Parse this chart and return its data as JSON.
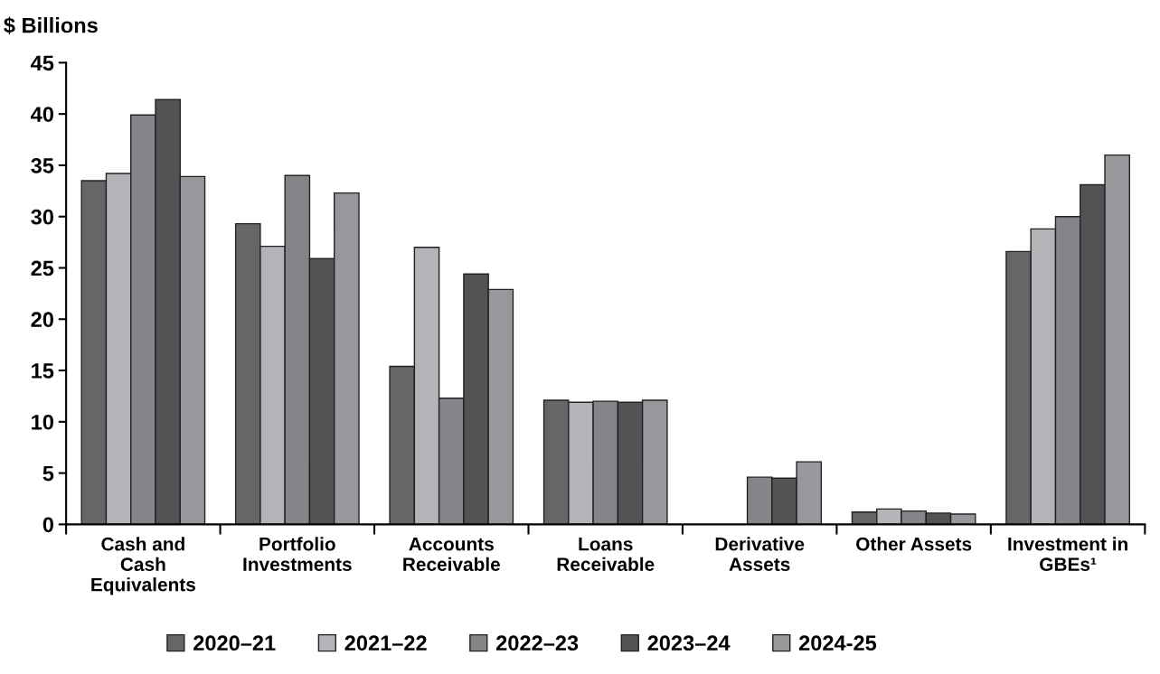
{
  "chart_data": {
    "type": "bar",
    "ylabel": "$ Billions",
    "categories": [
      "Cash and\nCash\nEquivalents",
      "Portfolio\nInvestments",
      "Accounts\nReceivable",
      "Loans\nReceivable",
      "Derivative\nAssets",
      "Other Assets",
      "Investment in\nGBEs¹"
    ],
    "series": [
      {
        "name": "2020–21",
        "color": "#666668",
        "values": [
          33.5,
          29.3,
          15.4,
          12.1,
          null,
          1.2,
          26.6
        ]
      },
      {
        "name": "2021–22",
        "color": "#b3b4b8",
        "values": [
          34.2,
          27.1,
          27.0,
          11.9,
          null,
          1.5,
          28.8
        ]
      },
      {
        "name": "2022–23",
        "color": "#848589",
        "values": [
          39.9,
          34.0,
          12.3,
          12.0,
          4.6,
          1.3,
          30.0
        ]
      },
      {
        "name": "2023–24",
        "color": "#525355",
        "values": [
          41.4,
          25.9,
          24.4,
          11.9,
          4.5,
          1.1,
          33.1
        ]
      },
      {
        "name": "2024-25",
        "color": "#97989c",
        "values": [
          33.9,
          32.3,
          22.9,
          12.1,
          6.1,
          1.0,
          36.0
        ]
      }
    ],
    "ylim": [
      0,
      45
    ],
    "yticks": [
      0,
      5,
      10,
      15,
      20,
      25,
      30,
      35,
      40,
      45
    ],
    "grid": false,
    "legend": "bottom"
  }
}
